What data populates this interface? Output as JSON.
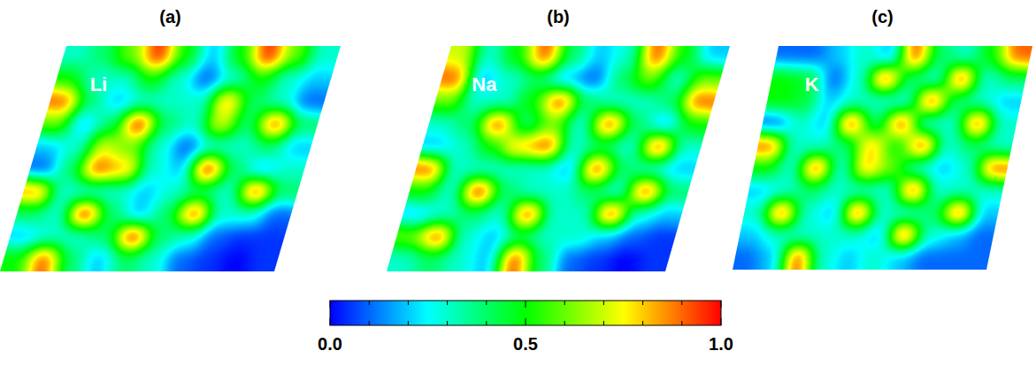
{
  "chart_data": {
    "type": "heatmap",
    "panels": [
      {
        "title": "(a)",
        "label": "Li",
        "cells": [
          [
            0.3,
            0.4,
            0.6,
            0.95,
            0.5,
            0.2,
            0.5,
            0.95,
            0.6,
            0.3
          ],
          [
            0.5,
            0.3,
            0.3,
            0.5,
            0.3,
            0.1,
            0.3,
            0.5,
            0.3,
            0.2
          ],
          [
            0.9,
            0.4,
            0.2,
            0.3,
            0.3,
            0.3,
            0.8,
            0.4,
            0.3,
            0.1
          ],
          [
            0.6,
            0.2,
            0.4,
            0.95,
            0.4,
            0.3,
            0.7,
            0.4,
            0.9,
            0.4
          ],
          [
            0.2,
            0.3,
            0.7,
            0.6,
            0.3,
            0.1,
            0.3,
            0.3,
            0.4,
            0.2
          ],
          [
            0.1,
            0.4,
            0.9,
            0.8,
            0.3,
            0.2,
            0.95,
            0.4,
            0.2,
            0.3
          ],
          [
            0.85,
            0.3,
            0.3,
            0.3,
            0.2,
            0.3,
            0.4,
            0.3,
            0.9,
            0.4
          ],
          [
            0.4,
            0.3,
            0.95,
            0.4,
            0.2,
            0.4,
            0.9,
            0.3,
            0.3,
            0.1
          ],
          [
            0.2,
            0.3,
            0.3,
            0.4,
            0.95,
            0.4,
            0.3,
            0.1,
            0.05,
            0.05
          ],
          [
            0.5,
            0.9,
            0.4,
            0.2,
            0.4,
            0.3,
            0.1,
            0.05,
            0.0,
            0.05
          ]
        ]
      },
      {
        "title": "(b)",
        "label": "Na",
        "cells": [
          [
            0.7,
            0.3,
            0.5,
            0.9,
            0.4,
            0.2,
            0.3,
            0.9,
            0.5,
            0.2
          ],
          [
            0.9,
            0.2,
            0.3,
            0.4,
            0.2,
            0.1,
            0.4,
            0.6,
            0.3,
            0.6
          ],
          [
            0.6,
            0.3,
            0.3,
            0.5,
            0.9,
            0.4,
            0.3,
            0.3,
            0.4,
            0.9
          ],
          [
            0.3,
            0.4,
            0.9,
            0.4,
            0.6,
            0.3,
            0.9,
            0.4,
            0.2,
            0.5
          ],
          [
            0.2,
            0.3,
            0.5,
            0.8,
            0.9,
            0.3,
            0.4,
            0.3,
            0.9,
            0.3
          ],
          [
            0.9,
            0.3,
            0.3,
            0.3,
            0.3,
            0.2,
            0.9,
            0.4,
            0.3,
            0.2
          ],
          [
            0.5,
            0.3,
            0.95,
            0.4,
            0.3,
            0.3,
            0.4,
            0.3,
            0.9,
            0.4
          ],
          [
            0.2,
            0.3,
            0.4,
            0.3,
            0.9,
            0.3,
            0.3,
            0.9,
            0.3,
            0.2
          ],
          [
            0.6,
            0.9,
            0.3,
            0.2,
            0.4,
            0.3,
            0.3,
            0.2,
            0.1,
            0.05
          ],
          [
            0.3,
            0.4,
            0.3,
            0.2,
            0.9,
            0.4,
            0.1,
            0.05,
            0.0,
            0.05
          ]
        ]
      },
      {
        "title": "(c)",
        "label": "K",
        "cells": [
          [
            0.1,
            0.1,
            0.2,
            0.3,
            0.2,
            0.9,
            0.4,
            0.3,
            0.5,
            0.9
          ],
          [
            0.5,
            0.45,
            0.1,
            0.3,
            0.9,
            0.4,
            0.3,
            0.9,
            0.3,
            0.4
          ],
          [
            0.5,
            0.45,
            0.2,
            0.3,
            0.3,
            0.3,
            0.9,
            0.4,
            0.3,
            0.2
          ],
          [
            0.1,
            0.3,
            0.2,
            0.9,
            0.4,
            0.9,
            0.3,
            0.3,
            0.9,
            0.3
          ],
          [
            0.9,
            0.3,
            0.3,
            0.4,
            0.8,
            0.5,
            0.9,
            0.3,
            0.4,
            0.3
          ],
          [
            0.5,
            0.3,
            0.9,
            0.3,
            0.8,
            0.6,
            0.3,
            0.2,
            0.3,
            0.9
          ],
          [
            0.2,
            0.3,
            0.4,
            0.3,
            0.3,
            0.3,
            0.9,
            0.3,
            0.3,
            0.3
          ],
          [
            0.3,
            0.9,
            0.3,
            0.2,
            0.9,
            0.3,
            0.3,
            0.4,
            0.9,
            0.2
          ],
          [
            0.2,
            0.3,
            0.3,
            0.3,
            0.3,
            0.2,
            0.9,
            0.3,
            0.2,
            0.1
          ],
          [
            0.1,
            0.2,
            0.9,
            0.3,
            0.2,
            0.3,
            0.2,
            0.1,
            0.1,
            0.1
          ]
        ]
      }
    ],
    "colorbar": {
      "range": [
        0,
        1
      ],
      "ticks": [
        {
          "value": 0,
          "label": "0.0"
        },
        {
          "value": 0.5,
          "label": "0.5"
        },
        {
          "value": 1,
          "label": "1.0"
        }
      ],
      "minor_ticks": [
        0.1,
        0.2,
        0.3,
        0.4,
        0.6,
        0.7,
        0.8,
        0.9
      ]
    }
  }
}
